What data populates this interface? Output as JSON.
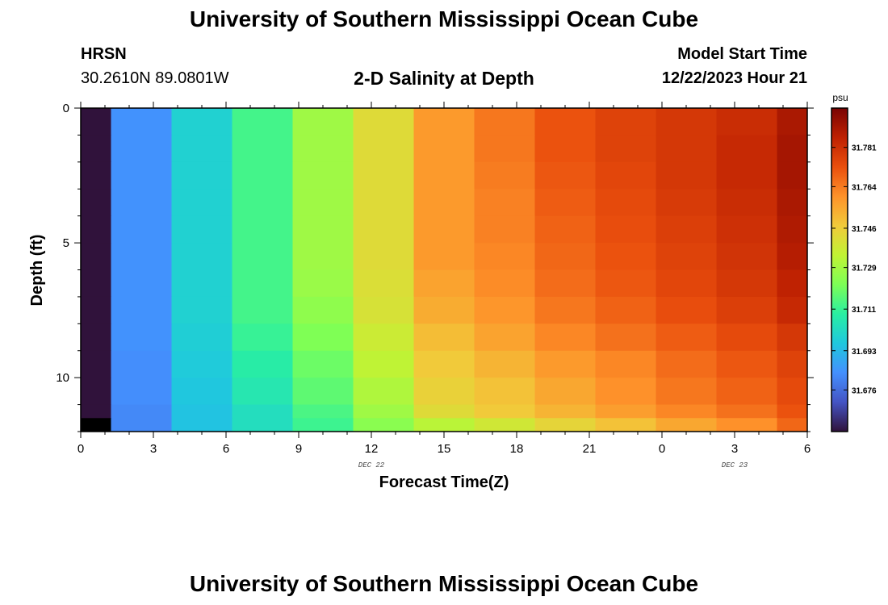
{
  "header": {
    "title_top": "University of Southern Mississippi Ocean Cube",
    "title_bottom": "University of Southern Mississippi Ocean Cube",
    "station": "HRSN",
    "coordinates": "30.2610N  89.0801W",
    "subtitle": "2-D Salinity at Depth",
    "model_start_label": "Model Start Time",
    "model_start_value": "12/22/2023 Hour 21"
  },
  "chart_data": {
    "type": "heatmap",
    "title": "2-D Salinity at Depth",
    "xlabel": "Forecast Time(Z)",
    "ylabel": "Depth (ft)",
    "x_ticks": [
      {
        "hour": 0,
        "label": "0"
      },
      {
        "hour": 3,
        "label": "3"
      },
      {
        "hour": 6,
        "label": "6"
      },
      {
        "hour": 9,
        "label": "9"
      },
      {
        "hour": 12,
        "label": "12"
      },
      {
        "hour": 15,
        "label": "15"
      },
      {
        "hour": 18,
        "label": "18"
      },
      {
        "hour": 21,
        "label": "21"
      },
      {
        "hour": 24,
        "label": "0"
      },
      {
        "hour": 27,
        "label": "3"
      },
      {
        "hour": 30,
        "label": "6"
      }
    ],
    "date_labels": [
      {
        "hour": 12,
        "label": "DEC 22"
      },
      {
        "hour": 27,
        "label": "DEC 23"
      }
    ],
    "xlim": [
      0,
      30
    ],
    "ylim": [
      0,
      12
    ],
    "y_ticks": [
      0,
      5,
      10
    ],
    "y_minor_step": 1,
    "time_edges": [
      0,
      1.25,
      3.75,
      6.25,
      8.75,
      11.25,
      13.75,
      16.25,
      18.75,
      21.25,
      23.75,
      26.25,
      28.75,
      30
    ],
    "depth_edges": [
      0,
      1,
      2,
      3,
      4,
      5,
      6,
      7,
      8,
      9,
      10,
      11,
      11.5,
      12
    ],
    "values": [
      [
        31.658,
        31.684,
        31.699,
        31.713,
        31.728,
        31.742,
        31.758,
        31.765,
        31.772,
        31.776,
        31.779,
        31.782,
        31.789
      ],
      [
        31.658,
        31.684,
        31.699,
        31.713,
        31.728,
        31.742,
        31.758,
        31.765,
        31.772,
        31.776,
        31.779,
        31.783,
        31.79
      ],
      [
        31.658,
        31.684,
        31.699,
        31.713,
        31.728,
        31.742,
        31.758,
        31.764,
        31.771,
        31.775,
        31.779,
        31.783,
        31.79
      ],
      [
        31.658,
        31.684,
        31.699,
        31.713,
        31.728,
        31.742,
        31.758,
        31.763,
        31.77,
        31.774,
        31.778,
        31.782,
        31.789
      ],
      [
        31.658,
        31.684,
        31.699,
        31.713,
        31.728,
        31.742,
        31.758,
        31.763,
        31.769,
        31.773,
        31.777,
        31.781,
        31.788
      ],
      [
        31.658,
        31.684,
        31.699,
        31.713,
        31.728,
        31.742,
        31.758,
        31.762,
        31.768,
        31.772,
        31.776,
        31.78,
        31.787
      ],
      [
        31.658,
        31.684,
        31.699,
        31.713,
        31.727,
        31.741,
        31.756,
        31.761,
        31.767,
        31.771,
        31.775,
        31.779,
        31.785
      ],
      [
        31.658,
        31.684,
        31.699,
        31.713,
        31.725,
        31.74,
        31.754,
        31.759,
        31.765,
        31.769,
        31.773,
        31.777,
        31.783
      ],
      [
        31.658,
        31.684,
        31.698,
        31.711,
        31.722,
        31.737,
        31.75,
        31.756,
        31.762,
        31.766,
        31.77,
        31.774,
        31.779
      ],
      [
        31.658,
        31.683,
        31.697,
        31.708,
        31.719,
        31.734,
        31.747,
        31.752,
        31.758,
        31.762,
        31.767,
        31.771,
        31.776
      ],
      [
        31.658,
        31.683,
        31.696,
        31.706,
        31.717,
        31.731,
        31.745,
        31.749,
        31.755,
        31.76,
        31.765,
        31.769,
        31.774
      ],
      [
        31.658,
        31.682,
        31.695,
        31.703,
        31.714,
        31.728,
        31.742,
        31.747,
        31.752,
        31.757,
        31.762,
        31.766,
        31.772
      ],
      [
        null,
        31.682,
        31.695,
        31.703,
        31.712,
        31.724,
        31.733,
        31.738,
        31.744,
        31.749,
        31.755,
        31.76,
        31.768
      ]
    ],
    "colorbar": {
      "unit": "psu",
      "min": 31.658,
      "max": 31.798,
      "ticks": [
        "31.676",
        "31.693",
        "31.711",
        "31.729",
        "31.746",
        "31.764",
        "31.781"
      ]
    },
    "colormap": [
      "#30123b",
      "#4454c4",
      "#4490fe",
      "#1fc8de",
      "#29efa2",
      "#7dff56",
      "#c1f334",
      "#f1ca3a",
      "#fe922a",
      "#ea4f0d",
      "#be2102",
      "#7a0403"
    ],
    "nodata_color": "#000000"
  }
}
